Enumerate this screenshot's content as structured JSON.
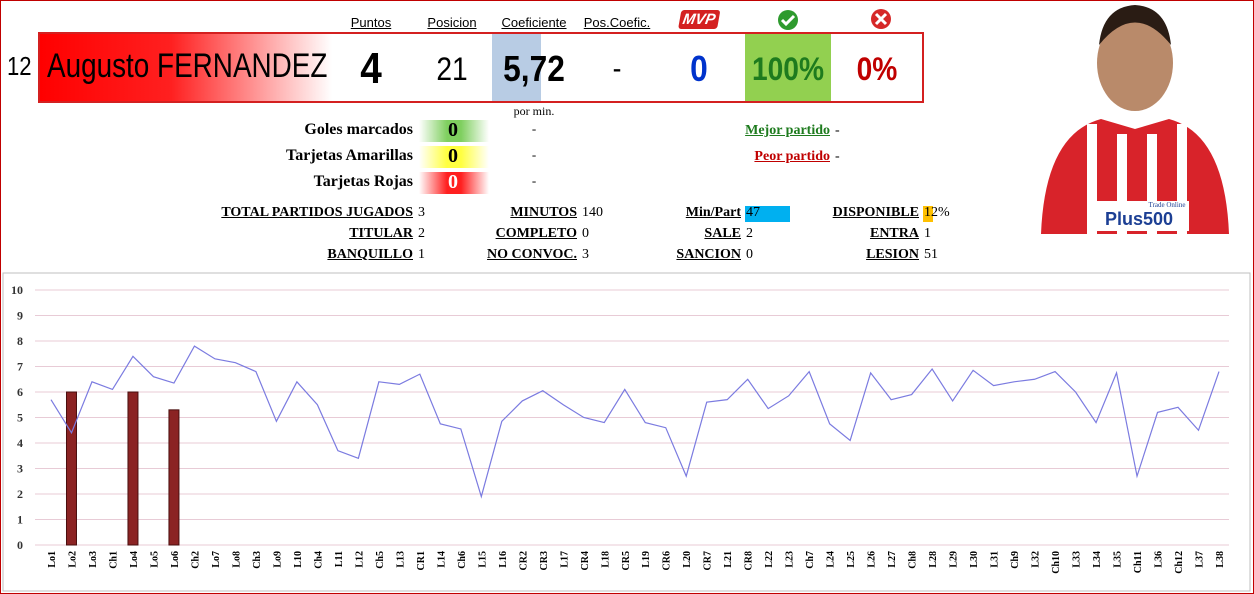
{
  "player": {
    "number": "12",
    "name": "Augusto FERNANDEZ"
  },
  "summary": [
    {
      "header": "Puntos",
      "value": 4
    },
    {
      "header": "Posicion",
      "value": 21
    },
    {
      "header": "Coeficiente",
      "value": "5,72"
    },
    {
      "header": "Pos.Coefic.",
      "value": "-"
    },
    {
      "header": "MVP",
      "value": 0
    },
    {
      "value": "100%"
    },
    {
      "value": "0%"
    }
  ],
  "per_min_label": "por min.",
  "cards": [
    {
      "label": "Goles marcados",
      "value": 0,
      "per_min": "-"
    },
    {
      "label": "Tarjetas Amarillas",
      "value": 0,
      "per_min": "-"
    },
    {
      "label": "Tarjetas Rojas",
      "value": 0,
      "per_min": "-"
    }
  ],
  "matches": [
    {
      "label": "Mejor partido",
      "value": "-"
    },
    {
      "label": "Peor partido",
      "value": "-"
    }
  ],
  "stats": [
    [
      {
        "label": "TOTAL PARTIDOS JUGADOS",
        "value": 3
      },
      {
        "label": "MINUTOS",
        "value": 140
      },
      {
        "label": "Min/Part",
        "value": 47
      },
      {
        "label": "DISPONIBLE",
        "value": "12%"
      }
    ],
    [
      {
        "label": "TITULAR",
        "value": 2
      },
      {
        "label": "COMPLETO",
        "value": 0
      },
      {
        "label": "SALE",
        "value": 2
      },
      {
        "label": "ENTRA",
        "value": 1
      }
    ],
    [
      {
        "label": "BANQUILLO",
        "value": 1
      },
      {
        "label": "NO CONVOC.",
        "value": 3
      },
      {
        "label": "SANCION",
        "value": 0
      },
      {
        "label": "LESION",
        "value": 51
      }
    ]
  ],
  "photo": {
    "sponsor": "Plus500",
    "sponsor_tagline": "Trade Online"
  },
  "chart_data": {
    "type": "combo",
    "categories": [
      "Lo1",
      "Lo2",
      "Lo3",
      "Ch1",
      "Lo4",
      "Lo5",
      "Lo6",
      "Ch2",
      "Lo7",
      "Lo8",
      "Ch3",
      "Lo9",
      "L10",
      "Ch4",
      "L11",
      "L12",
      "Ch5",
      "L13",
      "CR1",
      "L14",
      "Ch6",
      "L15",
      "L16",
      "CR2",
      "CR3",
      "L17",
      "CR4",
      "L18",
      "CR5",
      "L19",
      "CR6",
      "L20",
      "CR7",
      "L21",
      "CR8",
      "L22",
      "L23",
      "Ch7",
      "L24",
      "L25",
      "L26",
      "L27",
      "Ch8",
      "L28",
      "L29",
      "L30",
      "L31",
      "Ch9",
      "L32",
      "Ch10",
      "L33",
      "L34",
      "L35",
      "Ch11",
      "L36",
      "Ch12",
      "L37",
      "L38"
    ],
    "series": [
      {
        "type": "bar",
        "color": "#8b2323",
        "values": [
          null,
          6,
          null,
          null,
          6,
          null,
          5.3,
          null,
          null,
          null,
          null,
          null,
          null,
          null,
          null,
          null,
          null,
          null,
          null,
          null,
          null,
          null,
          null,
          null,
          null,
          null,
          null,
          null,
          null,
          null,
          null,
          null,
          null,
          null,
          null,
          null,
          null,
          null,
          null,
          null,
          null,
          null,
          null,
          null,
          null,
          null,
          null,
          null,
          null,
          null,
          null,
          null,
          null,
          null,
          null,
          null,
          null,
          null
        ]
      },
      {
        "type": "line",
        "color": "#7b7be0",
        "values": [
          5.7,
          4.4,
          6.4,
          6.1,
          7.4,
          6.6,
          6.35,
          7.8,
          7.3,
          7.15,
          6.8,
          4.85,
          6.4,
          5.5,
          3.7,
          3.4,
          6.4,
          6.3,
          6.7,
          4.75,
          4.55,
          1.9,
          4.85,
          5.65,
          6.05,
          5.5,
          5.0,
          4.8,
          6.1,
          4.8,
          4.6,
          2.7,
          5.6,
          5.7,
          6.5,
          5.35,
          5.85,
          6.8,
          4.75,
          4.1,
          6.75,
          5.7,
          5.9,
          6.9,
          5.65,
          6.85,
          6.25,
          6.4,
          6.5,
          6.8,
          6.0,
          4.8,
          6.75,
          2.7,
          5.2,
          5.4,
          4.5,
          6.8
        ]
      }
    ],
    "ylim": [
      0,
      10
    ],
    "yticks": [
      0,
      1,
      2,
      3,
      4,
      5,
      6,
      7,
      8,
      9,
      10
    ],
    "grid": true
  }
}
